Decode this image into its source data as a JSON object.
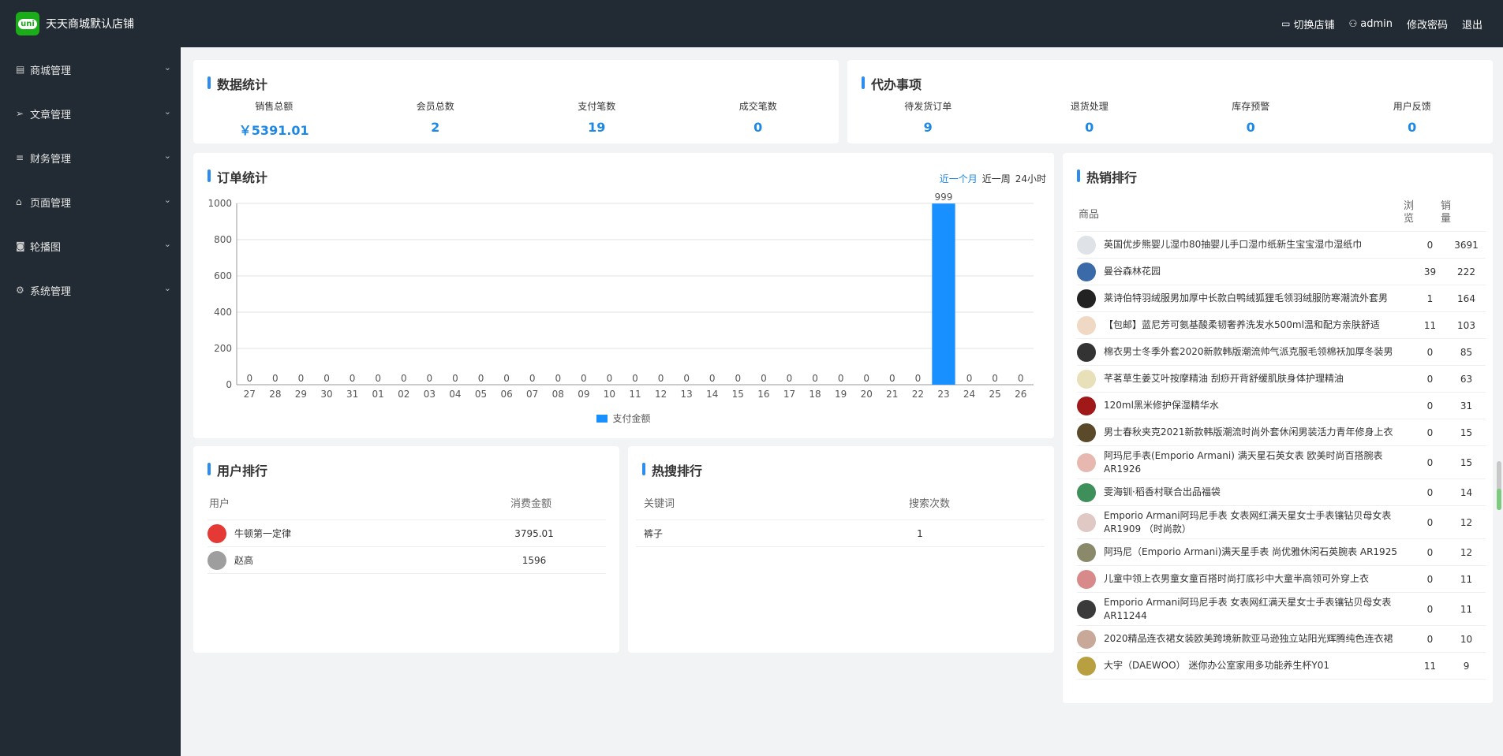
{
  "header": {
    "shop_name": "天天商城默认店铺",
    "switch_shop": "切换店铺",
    "username": "admin",
    "change_password": "修改密码",
    "logout": "退出",
    "logo_text": "uni"
  },
  "sidebar": {
    "items": [
      {
        "label": "商城管理",
        "icon": "shop-icon"
      },
      {
        "label": "文章管理",
        "icon": "send-icon"
      },
      {
        "label": "财务管理",
        "icon": "sliders-icon"
      },
      {
        "label": "页面管理",
        "icon": "home-icon"
      },
      {
        "label": "轮播图",
        "icon": "camera-icon"
      },
      {
        "label": "系统管理",
        "icon": "gear-icon"
      }
    ]
  },
  "stats": {
    "title": "数据统计",
    "items": [
      {
        "label": "销售总额",
        "value": "￥5391.01"
      },
      {
        "label": "会员总数",
        "value": "2"
      },
      {
        "label": "支付笔数",
        "value": "19"
      },
      {
        "label": "成交笔数",
        "value": "0"
      }
    ]
  },
  "todo": {
    "title": "代办事项",
    "items": [
      {
        "label": "待发货订单",
        "value": "9"
      },
      {
        "label": "退货处理",
        "value": "0"
      },
      {
        "label": "库存预警",
        "value": "0"
      },
      {
        "label": "用户反馈",
        "value": "0"
      }
    ]
  },
  "orders": {
    "title": "订单统计",
    "tabs": [
      "近一个月",
      "近一周",
      "24小时"
    ],
    "active_tab": "近一个月"
  },
  "chart_data": {
    "type": "bar",
    "categories": [
      "27",
      "28",
      "29",
      "30",
      "31",
      "01",
      "02",
      "03",
      "04",
      "05",
      "06",
      "07",
      "08",
      "09",
      "10",
      "11",
      "12",
      "13",
      "14",
      "15",
      "16",
      "17",
      "18",
      "19",
      "20",
      "21",
      "22",
      "23",
      "24",
      "25",
      "26"
    ],
    "series": [
      {
        "name": "支付金额",
        "values": [
          0,
          0,
          0,
          0,
          0,
          0,
          0,
          0,
          0,
          0,
          0,
          0,
          0,
          0,
          0,
          0,
          0,
          0,
          0,
          0,
          0,
          0,
          0,
          0,
          0,
          0,
          0,
          999,
          0,
          0,
          0
        ]
      }
    ],
    "yticks": [
      "0",
      "200",
      "400",
      "600",
      "800",
      "1000"
    ],
    "ylim": [
      0,
      1000
    ],
    "legend": "bottom-center",
    "color": "#1890ff",
    "grid": true
  },
  "user_rank": {
    "title": "用户排行",
    "col_user": "用户",
    "col_amount": "消费金额",
    "rows": [
      {
        "name": "牛顿第一定律",
        "amount": "3795.01",
        "avatar_color": "#e53935"
      },
      {
        "name": "赵高",
        "amount": "1596",
        "avatar_color": "#9e9e9e"
      }
    ]
  },
  "search_rank": {
    "title": "热搜排行",
    "col_keyword": "关键词",
    "col_count": "搜索次数",
    "rows": [
      {
        "keyword": "裤子",
        "count": "1"
      }
    ]
  },
  "hot_rank": {
    "title": "热销排行",
    "col_product": "商品",
    "col_views": "浏览",
    "col_sales": "销量",
    "rows": [
      {
        "name": "英国优步熊婴儿湿巾80抽婴儿手口湿巾纸新生宝宝湿巾湿纸巾",
        "views": "0",
        "sales": "3691",
        "thumb": "#dfe3e8"
      },
      {
        "name": "曼谷森林花园",
        "views": "39",
        "sales": "222",
        "thumb": "#3b6aa8"
      },
      {
        "name": "莱诗伯特羽绒服男加厚中长款白鸭绒狐狸毛领羽绒服防寒潮流外套男",
        "views": "1",
        "sales": "164",
        "thumb": "#222222"
      },
      {
        "name": "【包邮】蓝尼芳可氨基酸柔韧奢养洗发水500ml温和配方亲肤舒适",
        "views": "11",
        "sales": "103",
        "thumb": "#f0d9c4"
      },
      {
        "name": "棉衣男士冬季外套2020新款韩版潮流帅气派克服毛领棉袄加厚冬装男",
        "views": "0",
        "sales": "85",
        "thumb": "#333333"
      },
      {
        "name": "芊茗草生姜艾叶按摩精油 刮痧开背舒缓肌肤身体护理精油",
        "views": "0",
        "sales": "63",
        "thumb": "#e8e0b8"
      },
      {
        "name": "120ml黑米修护保湿精华水",
        "views": "0",
        "sales": "31",
        "thumb": "#a01818"
      },
      {
        "name": "男士春秋夹克2021新款韩版潮流时尚外套休闲男装活力青年修身上衣",
        "views": "0",
        "sales": "15",
        "thumb": "#5a4a2a"
      },
      {
        "name": "阿玛尼手表(Emporio Armani) 满天星石英女表 欧美时尚百搭腕表AR1926",
        "views": "0",
        "sales": "15",
        "thumb": "#e6b8b0"
      },
      {
        "name": "雯海钏·稻香村联合出品福袋",
        "views": "0",
        "sales": "14",
        "thumb": "#3f8f5a"
      },
      {
        "name": "Emporio Armani阿玛尼手表 女表网红满天星女士手表镶钻贝母女表AR1909 （时尚款）",
        "views": "0",
        "sales": "12",
        "thumb": "#e0c8c4"
      },
      {
        "name": "阿玛尼（Emporio Armani)满天星手表 尚优雅休闲石英腕表 AR1925",
        "views": "0",
        "sales": "12",
        "thumb": "#8a8a6a"
      },
      {
        "name": "儿童中领上衣男童女童百搭时尚打底衫中大童半高领可外穿上衣",
        "views": "0",
        "sales": "11",
        "thumb": "#d88a8a"
      },
      {
        "name": "Emporio Armani阿玛尼手表 女表网红满天星女士手表镶钻贝母女表AR11244",
        "views": "0",
        "sales": "11",
        "thumb": "#3a3a3a"
      },
      {
        "name": "2020精品连衣裙女装欧美跨境新款亚马逊独立站阳光辉腾纯色连衣裙",
        "views": "0",
        "sales": "10",
        "thumb": "#c8a898"
      },
      {
        "name": "大宇（DAEWOO） 迷你办公室家用多功能养生杯Y01",
        "views": "11",
        "sales": "9",
        "thumb": "#b8a040"
      }
    ]
  }
}
